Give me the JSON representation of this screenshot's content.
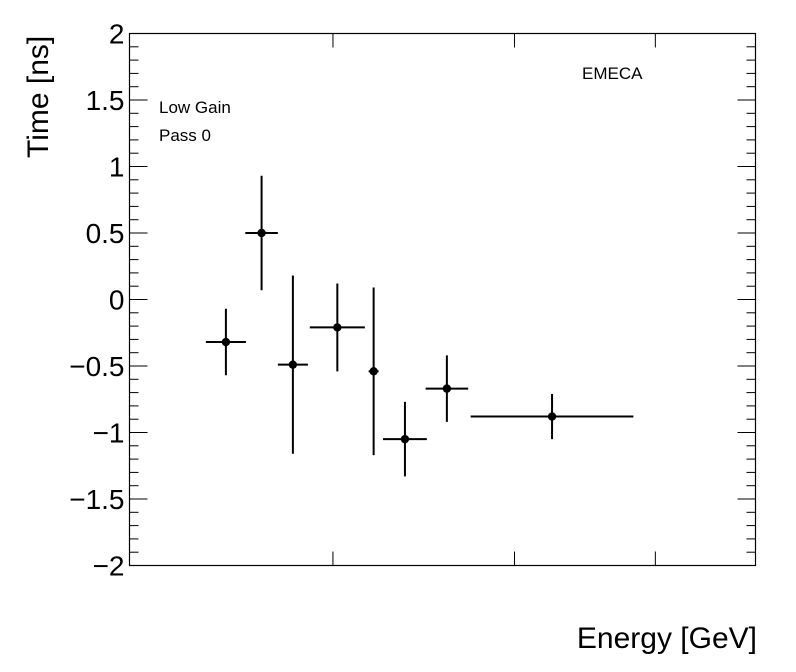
{
  "chart_data": {
    "type": "scatter",
    "title": "",
    "xlabel": "Energy [GeV]",
    "ylabel": "Time [ns]",
    "ylim": [
      -2,
      2
    ],
    "xlim": [
      0,
      1
    ],
    "y_ticks": [
      2,
      1.5,
      1,
      0.5,
      0,
      -0.5,
      -1,
      -1.5,
      -2
    ],
    "y_tick_labels": [
      "2",
      "1.5",
      "1",
      "0.5",
      "0",
      "−0.5",
      "−1",
      "−1.5",
      "−2"
    ],
    "annotations": {
      "detector": "EMECA",
      "gain": "Low Gain",
      "pass": "Pass 0"
    },
    "series": [
      {
        "name": "EMECA Low Gain Pass 0",
        "color": "#000000",
        "points": [
          {
            "x": 0.154,
            "xerr": 0.032,
            "y": -0.32,
            "yerr": 0.25
          },
          {
            "x": 0.211,
            "xerr": 0.026,
            "y": 0.5,
            "yerr": 0.43
          },
          {
            "x": 0.261,
            "xerr": 0.024,
            "y": -0.49,
            "yerr": 0.67
          },
          {
            "x": 0.332,
            "xerr": 0.044,
            "y": -0.21,
            "yerr": 0.33
          },
          {
            "x": 0.39,
            "xerr": 0.008,
            "y": -0.54,
            "yerr": 0.63
          },
          {
            "x": 0.44,
            "xerr": 0.035,
            "y": -1.05,
            "yerr": 0.28
          },
          {
            "x": 0.507,
            "xerr": 0.034,
            "y": -0.67,
            "yerr": 0.25
          },
          {
            "x": 0.675,
            "xerr": 0.13,
            "y": -0.88,
            "yerr": 0.17
          }
        ]
      }
    ]
  }
}
